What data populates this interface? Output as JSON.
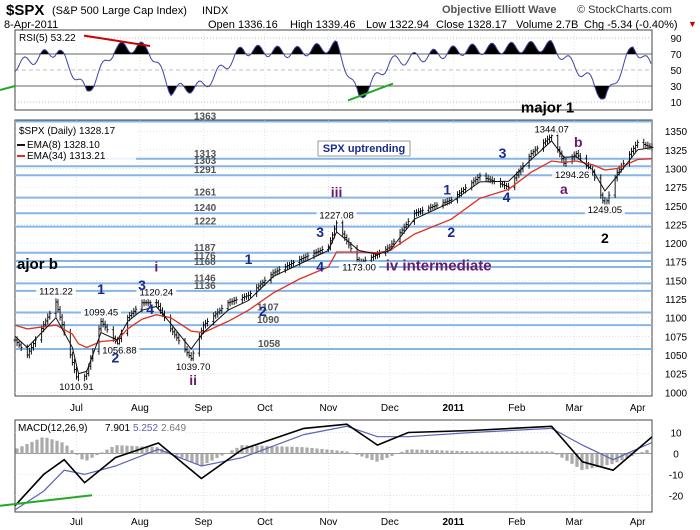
{
  "header": {
    "symbol": "$SPX",
    "name": "(S&P 500 Large Cap Index)",
    "exchange": "INDX",
    "date": "8-Apr-2011",
    "open": "Open 1336.16",
    "high": "High 1339.46",
    "low": "Low 1322.94",
    "close": "Close 1328.17",
    "volume": "Volume 2.7B",
    "chg": "Chg -5.34 (-0.40%)",
    "chg_arrow": "▼",
    "credit": "Objective Elliott Wave",
    "watermark": "© StockCharts.com"
  },
  "colors": {
    "price": "#000000",
    "ema8": "#111111",
    "ema34": "#e0301e",
    "level_line": "#86b6e6",
    "wave_blue": "#1a2a8c",
    "wave_purple": "#6a1a6a",
    "rsi": "#3d45a8",
    "macd": "#000000",
    "signal": "#5a63b8",
    "hist": "#aaaaaa",
    "trend_red": "#cc0000",
    "trend_green": "#22aa22"
  },
  "chart_data": [
    {
      "type": "line",
      "panel": "RSI",
      "legend": "RSI(5) 53.22",
      "y_ticks": [
        90,
        70,
        50,
        30,
        10
      ],
      "ylim": [
        0,
        100
      ],
      "overbought": 70,
      "oversold": 30,
      "x": [
        "2010-06-01",
        "2010-06-22",
        "2010-07-06",
        "2010-07-20",
        "2010-08-05",
        "2010-08-16",
        "2010-09-01",
        "2010-09-20",
        "2010-10-15",
        "2010-11-05",
        "2010-11-16",
        "2010-12-01",
        "2011-01-05",
        "2011-02-18",
        "2011-03-10",
        "2011-03-16",
        "2011-03-30",
        "2011-04-08"
      ],
      "values": [
        55,
        75,
        22,
        78,
        78,
        25,
        30,
        75,
        72,
        80,
        15,
        60,
        75,
        80,
        35,
        12,
        80,
        53.22
      ]
    },
    {
      "type": "line",
      "panel": "Price",
      "legend": "$SPX (Daily) 1328.17",
      "series_names": [
        "EMA(8) 1328.10",
        "EMA(34) 1313.21"
      ],
      "annotation": "SPX uptrending",
      "y_ticks": [
        1350,
        1325,
        1300,
        1275,
        1250,
        1225,
        1200,
        1175,
        1150,
        1125,
        1100,
        1075,
        1050,
        1025,
        1000
      ],
      "ylim": [
        995,
        1365
      ],
      "x_ticks": [
        "Jul",
        "Aug",
        "Sep",
        "Oct",
        "Nov",
        "Dec",
        "2011",
        "Feb",
        "Mar",
        "Apr"
      ],
      "levels": [
        1363,
        1313,
        1303,
        1291,
        1261,
        1240,
        1222,
        1187,
        1176,
        1168,
        1146,
        1136,
        1107,
        1090,
        1058
      ],
      "price_labels": [
        {
          "text": "1121.22",
          "x": "2010-06-21",
          "y": 1131
        },
        {
          "text": "1099.45",
          "x": "2010-07-13",
          "y": 1103
        },
        {
          "text": "1120.24",
          "x": "2010-08-09",
          "y": 1130
        },
        {
          "text": "1056.88",
          "x": "2010-07-22",
          "y": 1052
        },
        {
          "text": "1010.91",
          "x": "2010-07-01",
          "y": 1003
        },
        {
          "text": "1039.70",
          "x": "2010-08-27",
          "y": 1030
        },
        {
          "text": "1227.08",
          "x": "2010-11-05",
          "y": 1233
        },
        {
          "text": "1173.00",
          "x": "2010-11-16",
          "y": 1163
        },
        {
          "text": "1344.07",
          "x": "2011-02-18",
          "y": 1348
        },
        {
          "text": "1294.26",
          "x": "2011-02-28",
          "y": 1287
        },
        {
          "text": "1249.05",
          "x": "2011-03-16",
          "y": 1240
        }
      ],
      "wave_labels": [
        {
          "text": "ajor b",
          "x": "2010-06-02",
          "y": 1165,
          "color": "black"
        },
        {
          "text": "1",
          "x": "2010-07-13",
          "y": 1132,
          "color": "blue"
        },
        {
          "text": "2",
          "x": "2010-07-20",
          "y": 1040,
          "color": "blue"
        },
        {
          "text": "3",
          "x": "2010-08-02",
          "y": 1137,
          "color": "blue"
        },
        {
          "text": "i",
          "x": "2010-08-09",
          "y": 1162,
          "color": "purple"
        },
        {
          "text": "4",
          "x": "2010-08-06",
          "y": 1105,
          "color": "blue"
        },
        {
          "text": "ii",
          "x": "2010-08-27",
          "y": 1010,
          "color": "purple"
        },
        {
          "text": "1",
          "x": "2010-09-23",
          "y": 1172,
          "color": "blue"
        },
        {
          "text": "2",
          "x": "2010-09-30",
          "y": 1102,
          "color": "blue"
        },
        {
          "text": "3",
          "x": "2010-10-28",
          "y": 1208,
          "color": "blue"
        },
        {
          "text": "4",
          "x": "2010-10-28",
          "y": 1162,
          "color": "blue"
        },
        {
          "text": "iii",
          "x": "2010-11-05",
          "y": 1262,
          "color": "purple"
        },
        {
          "text": "iv intermediate",
          "x": "2010-11-29",
          "y": 1163,
          "color": "purple"
        },
        {
          "text": "1",
          "x": "2010-12-29",
          "y": 1265,
          "color": "blue"
        },
        {
          "text": "2",
          "x": "2010-12-31",
          "y": 1208,
          "color": "blue"
        },
        {
          "text": "3",
          "x": "2011-01-25",
          "y": 1314,
          "color": "blue"
        },
        {
          "text": "4",
          "x": "2011-01-27",
          "y": 1255,
          "color": "blue"
        },
        {
          "text": "major 1",
          "x": "2011-02-03",
          "y": 1375,
          "color": "black"
        },
        {
          "text": "b",
          "x": "2011-03-03",
          "y": 1329,
          "color": "purple"
        },
        {
          "text": "a",
          "x": "2011-02-24",
          "y": 1266,
          "color": "purple"
        },
        {
          "text": "2",
          "x": "2011-03-16",
          "y": 1200,
          "color": "black"
        }
      ],
      "x": [
        "2010-06-01",
        "2010-06-07",
        "2010-06-21",
        "2010-06-29",
        "2010-07-02",
        "2010-07-06",
        "2010-07-13",
        "2010-07-21",
        "2010-07-26",
        "2010-08-02",
        "2010-08-09",
        "2010-08-16",
        "2010-08-26",
        "2010-09-01",
        "2010-09-13",
        "2010-09-23",
        "2010-10-05",
        "2010-10-18",
        "2010-11-01",
        "2010-11-05",
        "2010-11-16",
        "2010-11-25",
        "2010-12-01",
        "2010-12-13",
        "2010-12-31",
        "2011-01-14",
        "2011-01-28",
        "2011-02-08",
        "2011-02-18",
        "2011-02-24",
        "2011-03-02",
        "2011-03-10",
        "2011-03-16",
        "2011-03-22",
        "2011-04-01",
        "2011-04-08"
      ],
      "values": [
        1070,
        1050,
        1121,
        1040,
        1011,
        1025,
        1095,
        1065,
        1100,
        1120,
        1120,
        1085,
        1045,
        1090,
        1120,
        1130,
        1160,
        1178,
        1195,
        1227,
        1173,
        1185,
        1195,
        1240,
        1258,
        1290,
        1275,
        1320,
        1344,
        1307,
        1320,
        1295,
        1249,
        1295,
        1335,
        1328.17
      ],
      "ema8": [
        1075,
        1060,
        1100,
        1060,
        1025,
        1028,
        1080,
        1070,
        1095,
        1110,
        1115,
        1092,
        1058,
        1080,
        1110,
        1123,
        1155,
        1172,
        1190,
        1215,
        1190,
        1185,
        1190,
        1232,
        1255,
        1282,
        1283,
        1312,
        1337,
        1315,
        1316,
        1298,
        1270,
        1290,
        1325,
        1328.1
      ],
      "ema34": [
        1090,
        1085,
        1090,
        1078,
        1065,
        1060,
        1068,
        1070,
        1085,
        1098,
        1104,
        1100,
        1082,
        1080,
        1095,
        1110,
        1133,
        1152,
        1168,
        1188,
        1188,
        1187,
        1190,
        1212,
        1232,
        1260,
        1272,
        1295,
        1310,
        1308,
        1310,
        1305,
        1298,
        1300,
        1312,
        1313.21
      ]
    },
    {
      "type": "line",
      "panel": "MACD",
      "legend_name": "MACD(12,26,9)",
      "legend_values": [
        "7.901",
        "5.252",
        "2.649"
      ],
      "y_ticks": [
        10,
        0,
        -10,
        -20
      ],
      "ylim": [
        -28,
        16
      ],
      "x": [
        "2010-06-01",
        "2010-06-15",
        "2010-06-25",
        "2010-07-05",
        "2010-07-20",
        "2010-08-10",
        "2010-08-31",
        "2010-09-20",
        "2010-10-20",
        "2010-11-10",
        "2010-11-25",
        "2010-12-10",
        "2011-01-10",
        "2011-02-18",
        "2011-03-05",
        "2011-03-20",
        "2011-04-08"
      ],
      "values": [
        -25,
        -10,
        -3,
        -14,
        -2,
        5,
        -12,
        2,
        12,
        14,
        4,
        10,
        11,
        13,
        -4,
        -8,
        7.901
      ],
      "signal": [
        -27,
        -18,
        -8,
        -10,
        -6,
        2,
        -6,
        -2,
        9,
        13,
        8,
        8,
        10,
        12,
        4,
        -3,
        5.252
      ],
      "histogram": [
        2,
        8,
        5,
        -4,
        4,
        3,
        -6,
        4,
        3,
        1,
        -4,
        2,
        1,
        1,
        -8,
        -5,
        2.649
      ]
    }
  ]
}
